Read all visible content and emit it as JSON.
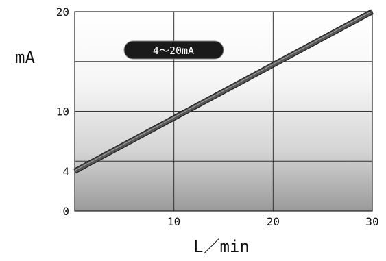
{
  "chart_data": {
    "type": "line",
    "xlabel": "L／min",
    "ylabel": "mA",
    "xlim": [
      0,
      30
    ],
    "ylim": [
      0,
      20
    ],
    "x_ticks": [
      0,
      10,
      20,
      30
    ],
    "y_ticks": [
      0,
      4,
      10,
      20
    ],
    "x_tick_labels": [
      "",
      "10",
      "20",
      "30"
    ],
    "y_tick_labels": [
      "0",
      "4",
      "10",
      "20"
    ],
    "grid": true,
    "series": [
      {
        "x": [
          0,
          30
        ],
        "y": [
          4,
          20
        ]
      }
    ],
    "annotation": "4～20mA",
    "colors": {
      "line": "#555555",
      "badge": "#1a1a1a",
      "grid": "#333333"
    }
  }
}
